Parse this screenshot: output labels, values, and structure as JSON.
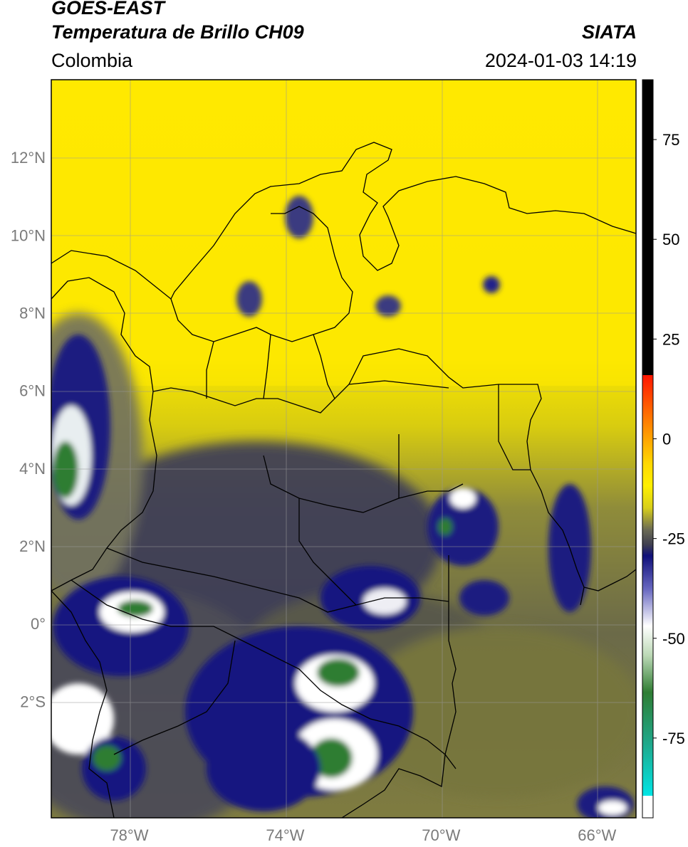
{
  "header": {
    "satellite": "GOES-EAST",
    "product": "Temperatura de Brillo CH09",
    "region": "Colombia",
    "organization": "SIATA",
    "timestamp": "2024-01-03 14:19"
  },
  "map": {
    "lon_range": [
      -80,
      -65
    ],
    "lat_range": [
      -5,
      14
    ],
    "lat_ticks": [
      {
        "value": 12,
        "label": "12°N"
      },
      {
        "value": 10,
        "label": "10°N"
      },
      {
        "value": 8,
        "label": "8°N"
      },
      {
        "value": 6,
        "label": "6°N"
      },
      {
        "value": 4,
        "label": "4°N"
      },
      {
        "value": 2,
        "label": "2°N"
      },
      {
        "value": 0,
        "label": "0°"
      },
      {
        "value": -2,
        "label": "2°S"
      }
    ],
    "lon_ticks": [
      {
        "value": -78,
        "label": "78°W"
      },
      {
        "value": -74,
        "label": "74°W"
      },
      {
        "value": -70,
        "label": "70°W"
      },
      {
        "value": -66,
        "label": "66°W"
      }
    ],
    "gridlines": true
  },
  "colorbar": {
    "range": [
      -95,
      90
    ],
    "ticks": [
      {
        "value": 75,
        "label": "75"
      },
      {
        "value": 50,
        "label": "50"
      },
      {
        "value": 25,
        "label": "25"
      },
      {
        "value": 0,
        "label": "0"
      },
      {
        "value": -25,
        "label": "-25"
      },
      {
        "value": -50,
        "label": "-50"
      },
      {
        "value": -75,
        "label": "-75"
      }
    ],
    "colors": {
      "black": "#000000",
      "red": "#ff1500",
      "orange": "#ff9500",
      "yellow": "#ffee00",
      "olive": "#9b9a2e",
      "gray": "#55554f",
      "navy": "#14147e",
      "white": "#ffffff",
      "green": "#2f7d33",
      "cyan": "#00e0e0"
    }
  }
}
